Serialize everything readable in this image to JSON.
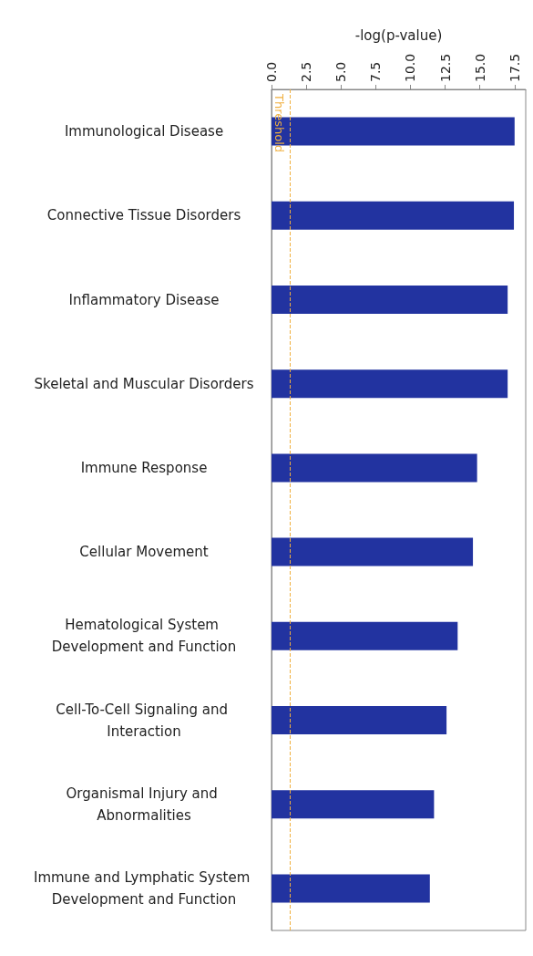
{
  "chart_data": {
    "type": "bar",
    "orientation": "horizontal",
    "xlabel": "-log(p-value)",
    "categories": [
      "Immunological Disease",
      "Connective Tissue Disorders",
      "Inflammatory Disease",
      "Skeletal and Muscular Disorders",
      "Immune Response",
      "Cellular Movement",
      "Hematological System Development and Function",
      "Cell-To-Cell Signaling and Interaction",
      "Organismal Injury and Abnormalities",
      "Immune and Lymphatic System Development and Function"
    ],
    "values": [
      17.5,
      17.45,
      17.0,
      17.0,
      14.8,
      14.5,
      13.4,
      12.6,
      11.7,
      11.4
    ],
    "color": "#2233a0",
    "xlim": [
      0,
      18.3
    ],
    "xticks": [
      {
        "value": 0,
        "label": "0.0"
      },
      {
        "value": 2.5,
        "label": "2.5"
      },
      {
        "value": 5,
        "label": "5.0"
      },
      {
        "value": 7.5,
        "label": "7.5"
      },
      {
        "value": 10,
        "label": "10.0"
      },
      {
        "value": 12.5,
        "label": "12.5"
      },
      {
        "value": 15,
        "label": "15.0"
      },
      {
        "value": 17.5,
        "label": "17.5"
      }
    ],
    "grid": false,
    "ref_lines": [
      {
        "axis": "x",
        "value": 1.3,
        "label": "Threshold",
        "color": "#f0b040"
      }
    ]
  }
}
